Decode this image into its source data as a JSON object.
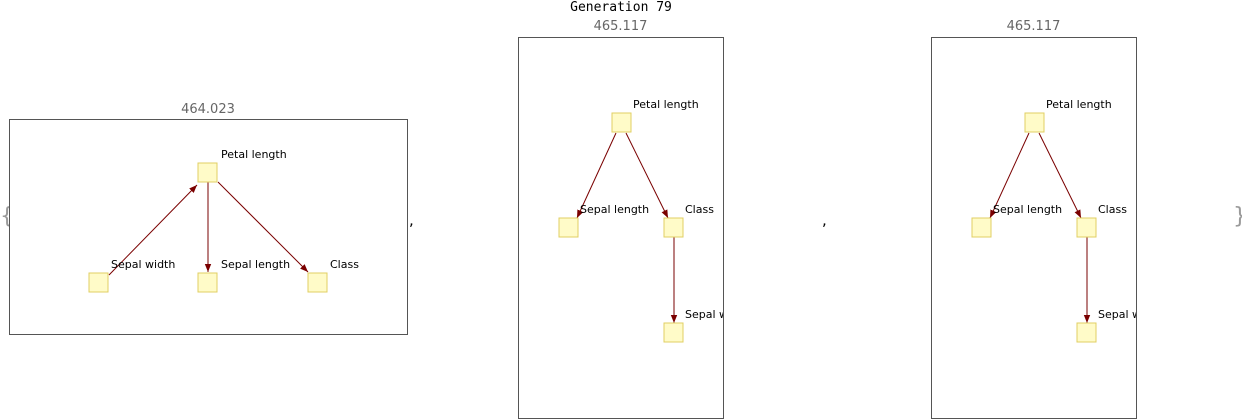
{
  "title": "Generation 79",
  "braces": {
    "open": "{",
    "close": "}"
  },
  "separator": ",",
  "panels": [
    {
      "score": "464.023",
      "nodes": {
        "petal": "Petal length",
        "sepalw": "Sepal width",
        "sepall": "Sepal length",
        "class": "Class"
      }
    },
    {
      "score": "465.117",
      "nodes": {
        "petal": "Petal length",
        "sepall": "Sepal length",
        "class": "Class",
        "sepalw": "Sepal width"
      }
    },
    {
      "score": "465.117",
      "nodes": {
        "petal": "Petal length",
        "sepall": "Sepal length",
        "class": "Class",
        "sepalw": "Sepal width"
      }
    }
  ],
  "colors": {
    "node_fill": "#fffbc8",
    "node_stroke": "#e0cf63",
    "edge": "#7a0000",
    "score_text": "#666666"
  }
}
